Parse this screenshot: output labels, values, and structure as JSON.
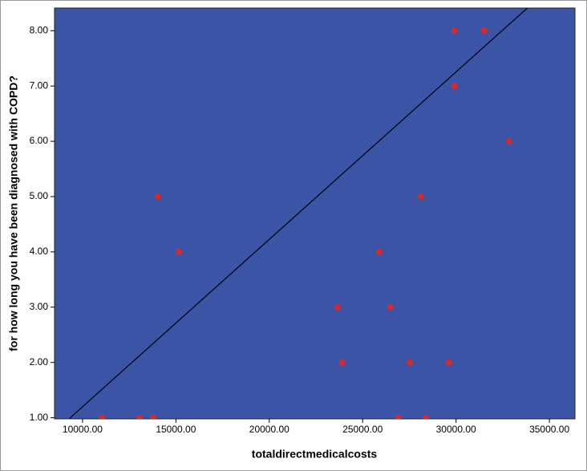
{
  "chart_data": {
    "type": "scatter",
    "x_label": "totaldirectmedicalcosts",
    "y_label": "for how long you have been diagnosed with COPD?",
    "x": [
      11030,
      13050,
      13780,
      14030,
      15150,
      23650,
      23900,
      25880,
      26480,
      26910,
      27510,
      28110,
      28370,
      29610,
      29910,
      29910,
      31500,
      32830
    ],
    "values": [
      1,
      1,
      1,
      5,
      4,
      3,
      2,
      4,
      3,
      1,
      2,
      5,
      1,
      2,
      8,
      7,
      8,
      6
    ],
    "color": "#d42a2a",
    "background": "#3b54a5",
    "fit_line": {
      "x": [
        9310,
        33820
      ],
      "y": [
        0.99,
        8.41
      ],
      "color": "#000000"
    },
    "xlim": [
      8500,
      36370
    ],
    "ylim": [
      0.98,
      8.41
    ],
    "xticks": [
      {
        "value": 10000,
        "label": "10000.00"
      },
      {
        "value": 15000,
        "label": "15000.00"
      },
      {
        "value": 20000,
        "label": "20000.00"
      },
      {
        "value": 25000,
        "label": "25000.00"
      },
      {
        "value": 30000,
        "label": "30000.00"
      },
      {
        "value": 35000,
        "label": "35000.00"
      }
    ],
    "yticks": [
      {
        "value": 1,
        "label": "1.00"
      },
      {
        "value": 2,
        "label": "2.00"
      },
      {
        "value": 3,
        "label": "3.00"
      },
      {
        "value": 4,
        "label": "4.00"
      },
      {
        "value": 5,
        "label": "5.00"
      },
      {
        "value": 6,
        "label": "6.00"
      },
      {
        "value": 7,
        "label": "7.00"
      },
      {
        "value": 8,
        "label": "8.00"
      }
    ]
  }
}
